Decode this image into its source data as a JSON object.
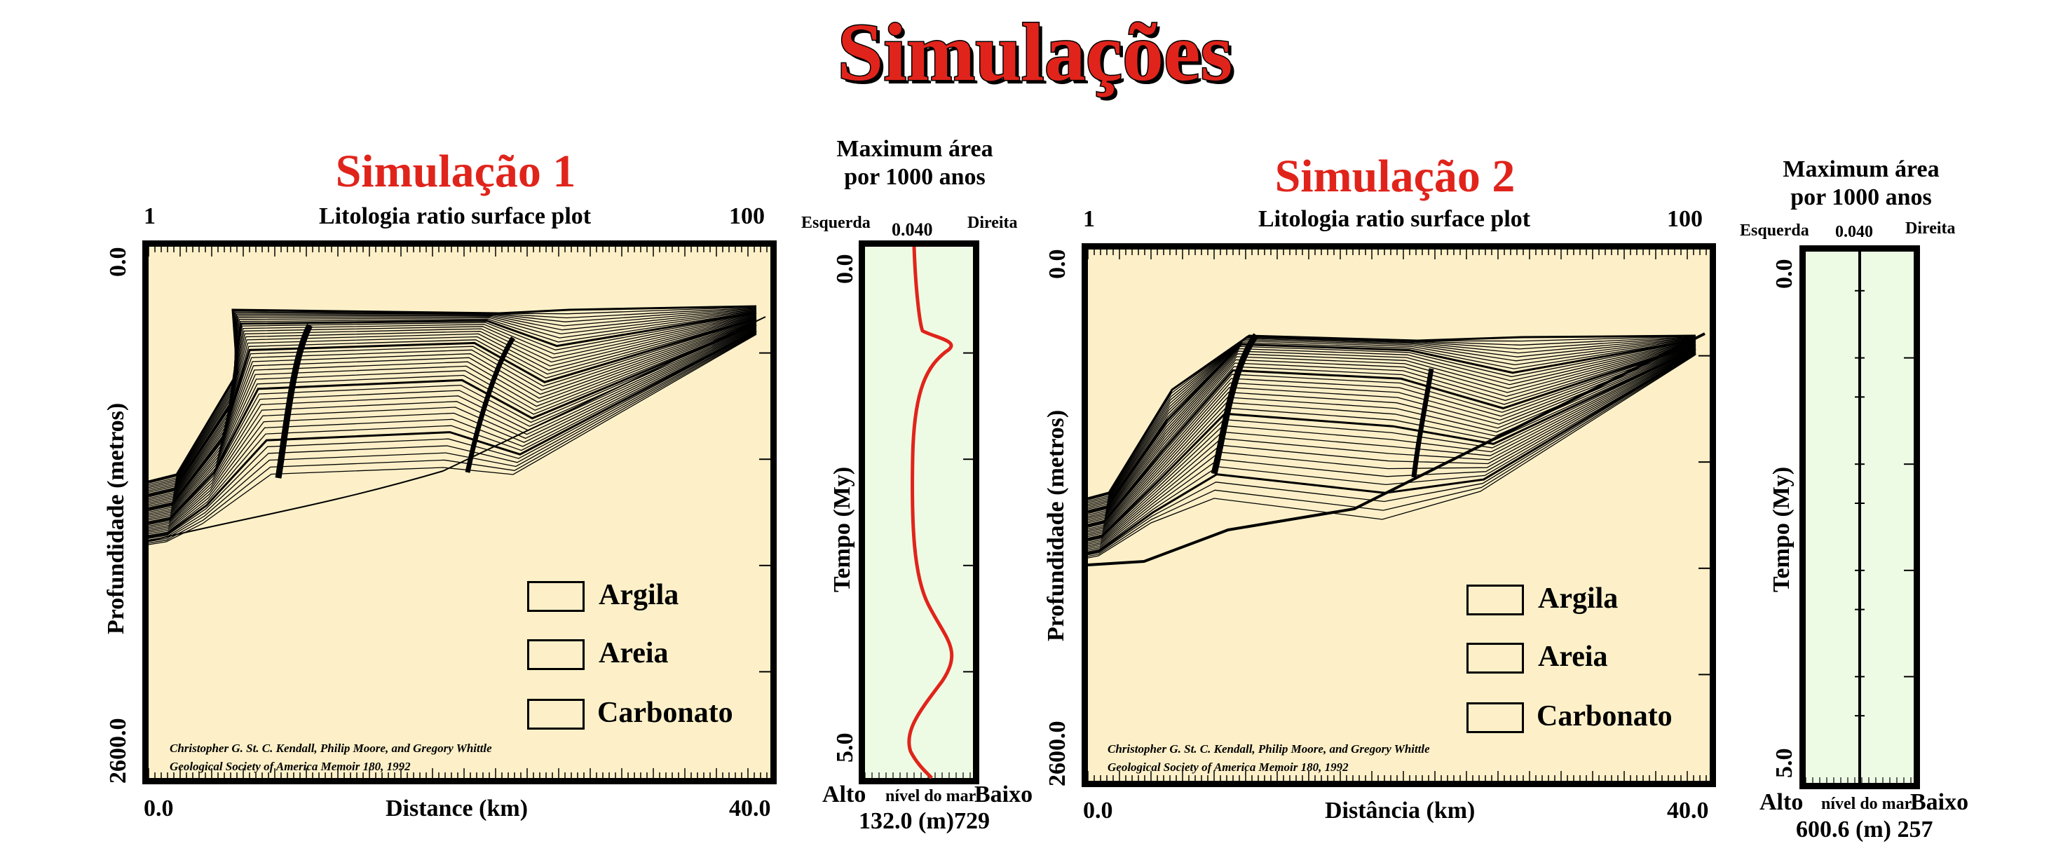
{
  "title": "Simulações",
  "simulations": [
    {
      "title": "Simulação 1",
      "plot_title": "Litologia ratio surface plot",
      "top_left": "1",
      "top_right": "100",
      "ylabel": "Profundidade (metros)",
      "y_top": "0.0",
      "y_bottom": "2600.0",
      "xlabel": "Distance (km)",
      "x_left": "0.0",
      "x_right": "40.0",
      "legend": [
        "Argila",
        "Areia",
        "Carbonato"
      ],
      "citation_1": "Christopher G. St. C. Kendall, Philip Moore, and Gregory Whittle",
      "citation_2": "Geological Society of America Memoir 180, 1992",
      "column": {
        "title_1": "Maximum área",
        "title_2": "por 1000 anos",
        "left": "Esquerda",
        "center": "0.040",
        "right": "Direita",
        "ylabel": "Tempo (My)",
        "y_top": "0.0",
        "y_bottom": "5.0",
        "bottom_left": "Alto",
        "bottom_center": "nível do mar",
        "bottom_right": "Baixo",
        "bottom_values": "132.0 (m)729",
        "curve_color": "#e0241b"
      }
    },
    {
      "title": "Simulação 2",
      "plot_title": "Litologia ratio surface plot",
      "top_left": "1",
      "top_right": "100",
      "ylabel": "Profundidade (metros)",
      "y_top": "0.0",
      "y_bottom": "2600.0",
      "xlabel": "Distância (km)",
      "x_left": "0.0",
      "x_right": "40.0",
      "legend": [
        "Argila",
        "Areia",
        "Carbonato"
      ],
      "citation_1": "Christopher G. St. C. Kendall, Philip Moore, and Gregory Whittle",
      "citation_2": "Geological Society of America Memoir 180, 1992",
      "column": {
        "title_1": "Maximum área",
        "title_2": "por 1000 anos",
        "left": "Esquerda",
        "center": "0.040",
        "right": "Direita",
        "ylabel": "Tempo (My)",
        "y_top": "0.0",
        "y_bottom": "5.0",
        "bottom_left": "Alto",
        "bottom_center": "nível do mar",
        "bottom_right": "Baixo",
        "bottom_values": "600.6 (m) 257",
        "curve_color": "#000000"
      }
    }
  ],
  "colors": {
    "title_red": "#e0241b",
    "plot_bg": "#fdf0c8",
    "column_bg": "#eefbe4"
  }
}
